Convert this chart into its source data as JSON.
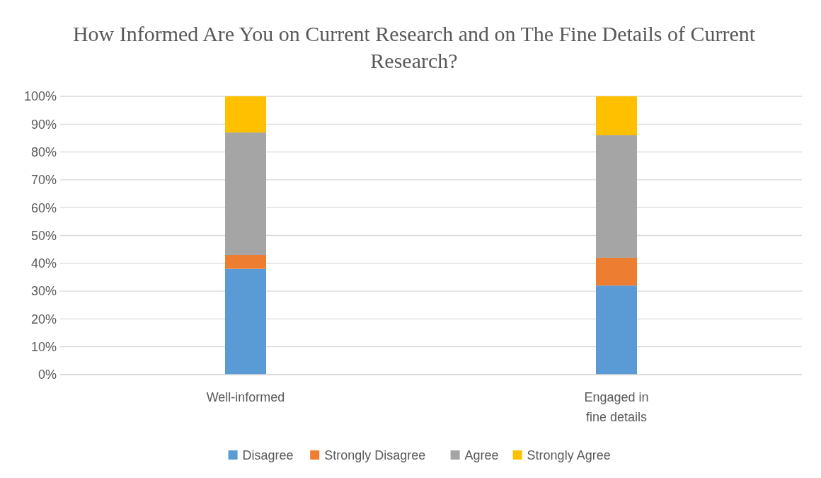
{
  "chart_data": {
    "type": "bar",
    "title": "How Informed Are You on Current Research and on The Fine Details of Current Research?",
    "categories": [
      "Well-informed",
      "Engaged in fine details"
    ],
    "stacked": true,
    "series": [
      {
        "name": "Disagree",
        "color": "#5b9bd5",
        "values": [
          38,
          32
        ]
      },
      {
        "name": "Strongly Disagree",
        "color": "#ed7d31",
        "values": [
          5,
          10
        ]
      },
      {
        "name": "Agree",
        "color": "#a5a5a5",
        "values": [
          44,
          44
        ]
      },
      {
        "name": "Strongly Agree",
        "color": "#ffc000",
        "values": [
          13,
          14
        ]
      }
    ],
    "ylim": [
      0,
      100
    ],
    "yticks": [
      {
        "value": 0,
        "label": "0%"
      },
      {
        "value": 10,
        "label": "10%"
      },
      {
        "value": 20,
        "label": "20%"
      },
      {
        "value": 30,
        "label": "30%"
      },
      {
        "value": 40,
        "label": "40%"
      },
      {
        "value": 50,
        "label": "50%"
      },
      {
        "value": 60,
        "label": "60%"
      },
      {
        "value": 70,
        "label": "70%"
      },
      {
        "value": 80,
        "label": "80%"
      },
      {
        "value": 90,
        "label": "90%"
      },
      {
        "value": 100,
        "label": "100%"
      }
    ],
    "grid": "y",
    "legend": "bottom"
  }
}
